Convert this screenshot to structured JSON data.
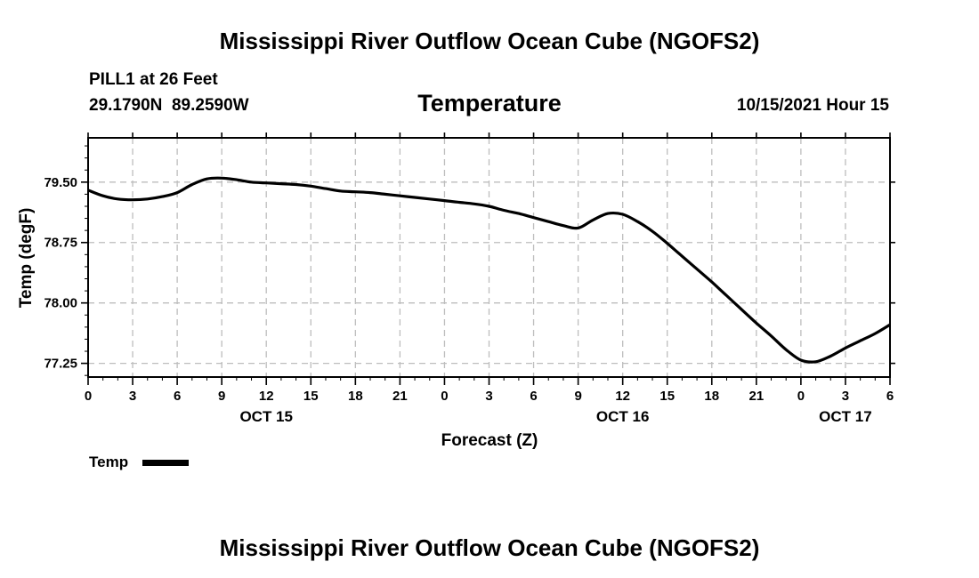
{
  "page": {
    "main_title": "Mississippi River Outflow Ocean Cube (NGOFS2)",
    "footer_title": "Mississippi River Outflow Ocean Cube (NGOFS2)",
    "station": "PILL1 at 26 Feet",
    "coords": "29.1790N  89.2590W",
    "datetime": "10/15/2021 Hour 15"
  },
  "chart_data": {
    "type": "line",
    "title": "Temperature",
    "xlabel": "Forecast (Z)",
    "ylabel": "Temp (degF)",
    "xlim": [
      0,
      54
    ],
    "ylim": [
      77.08,
      80.05
    ],
    "grid": true,
    "x_tick_values": [
      0,
      3,
      6,
      9,
      12,
      15,
      18,
      21,
      24,
      27,
      30,
      33,
      36,
      39,
      42,
      45,
      48,
      51,
      54
    ],
    "x_tick_labels": [
      "0",
      "3",
      "6",
      "9",
      "12",
      "15",
      "18",
      "21",
      "0",
      "3",
      "6",
      "9",
      "12",
      "15",
      "18",
      "21",
      "0",
      "3",
      "6"
    ],
    "date_labels": [
      {
        "x": 12,
        "label": "OCT 15"
      },
      {
        "x": 36,
        "label": "OCT 16"
      },
      {
        "x": 51,
        "label": "OCT 17"
      }
    ],
    "y_ticks": [
      77.25,
      78.0,
      78.75,
      79.5
    ],
    "y_tick_labels": [
      "77.25",
      "78.00",
      "78.75",
      "79.50"
    ],
    "legend": {
      "position": "bottom-left",
      "label": "Temp"
    },
    "series": [
      {
        "name": "Temp",
        "color": "#000000",
        "x": [
          0,
          1,
          2,
          3,
          4,
          5,
          6,
          7,
          8,
          9,
          10,
          11,
          12,
          13,
          14,
          15,
          16,
          17,
          18,
          19,
          20,
          21,
          22,
          23,
          24,
          25,
          26,
          27,
          28,
          29,
          30,
          31,
          32,
          33,
          34,
          35,
          36,
          37,
          38,
          39,
          40,
          41,
          42,
          43,
          44,
          45,
          46,
          47,
          48,
          49,
          50,
          51,
          52,
          53,
          54
        ],
        "values": [
          79.4,
          79.33,
          79.29,
          79.28,
          79.29,
          79.32,
          79.37,
          79.47,
          79.54,
          79.55,
          79.53,
          79.5,
          79.49,
          79.48,
          79.47,
          79.45,
          79.42,
          79.39,
          79.38,
          79.37,
          79.35,
          79.33,
          79.31,
          79.29,
          79.27,
          79.25,
          79.23,
          79.2,
          79.15,
          79.11,
          79.06,
          79.01,
          78.96,
          78.93,
          79.03,
          79.11,
          79.1,
          79.01,
          78.89,
          78.74,
          78.58,
          78.42,
          78.26,
          78.09,
          77.92,
          77.75,
          77.59,
          77.42,
          77.29,
          77.27,
          77.34,
          77.44,
          77.53,
          77.62,
          77.73
        ]
      }
    ]
  }
}
